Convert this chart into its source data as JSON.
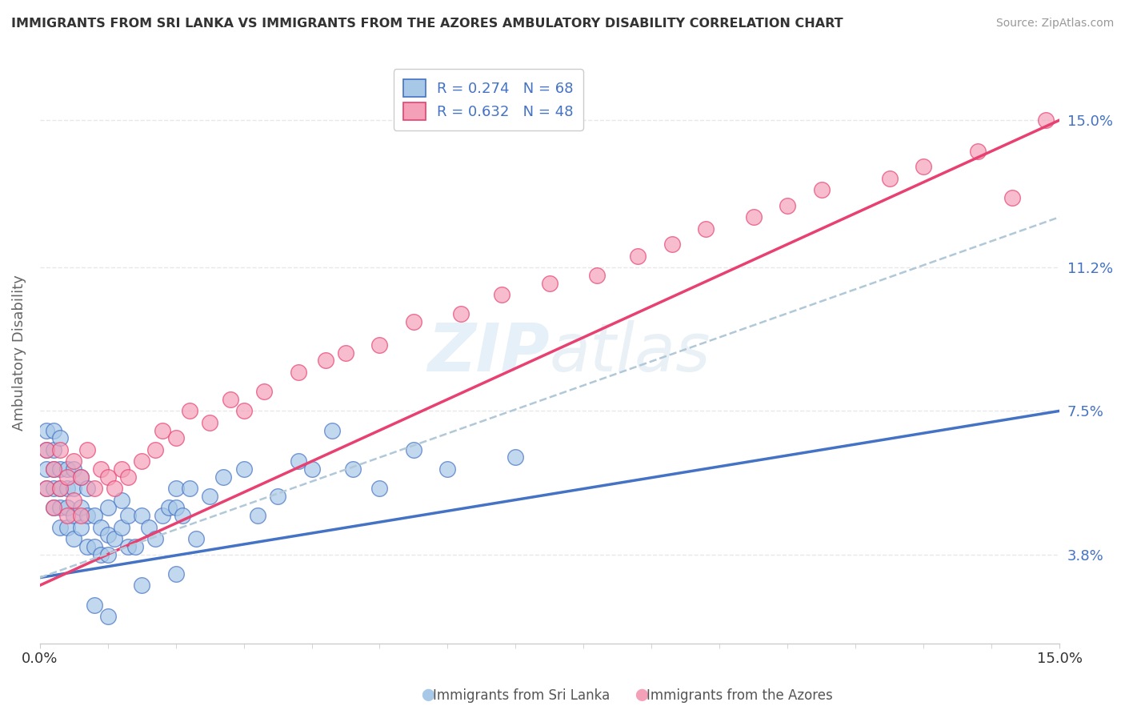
{
  "title": "IMMIGRANTS FROM SRI LANKA VS IMMIGRANTS FROM THE AZORES AMBULATORY DISABILITY CORRELATION CHART",
  "source": "Source: ZipAtlas.com",
  "ylabel": "Ambulatory Disability",
  "legend_label1": "Immigrants from Sri Lanka",
  "legend_label2": "Immigrants from the Azores",
  "legend_R1": "R = 0.274",
  "legend_N1": "N = 68",
  "legend_R2": "R = 0.632",
  "legend_N2": "N = 48",
  "xlim": [
    0.0,
    0.15
  ],
  "ylim": [
    0.015,
    0.165
  ],
  "ytick_positions": [
    0.038,
    0.075,
    0.112,
    0.15
  ],
  "ytick_labels": [
    "3.8%",
    "7.5%",
    "11.2%",
    "15.0%"
  ],
  "color_sri_lanka": "#a8c8e8",
  "color_azores": "#f4a0b8",
  "line_color_sri_lanka": "#4472c4",
  "line_color_azores": "#e84070",
  "line_color_dashed": "#b0c8d8",
  "background_color": "#ffffff",
  "grid_color": "#e8e8e8",
  "sl_line_start_y": 0.032,
  "sl_line_end_y": 0.075,
  "az_line_start_y": 0.03,
  "az_line_end_y": 0.15,
  "dash_line_start_y": 0.032,
  "dash_line_end_y": 0.125,
  "sri_lanka_x": [
    0.001,
    0.001,
    0.001,
    0.001,
    0.002,
    0.002,
    0.002,
    0.002,
    0.002,
    0.003,
    0.003,
    0.003,
    0.003,
    0.003,
    0.004,
    0.004,
    0.004,
    0.004,
    0.005,
    0.005,
    0.005,
    0.005,
    0.006,
    0.006,
    0.006,
    0.007,
    0.007,
    0.007,
    0.008,
    0.008,
    0.009,
    0.009,
    0.01,
    0.01,
    0.01,
    0.011,
    0.012,
    0.012,
    0.013,
    0.013,
    0.014,
    0.015,
    0.016,
    0.017,
    0.018,
    0.019,
    0.02,
    0.02,
    0.021,
    0.022,
    0.023,
    0.025,
    0.027,
    0.03,
    0.032,
    0.035,
    0.038,
    0.04,
    0.043,
    0.046,
    0.05,
    0.055,
    0.06,
    0.07,
    0.015,
    0.008,
    0.01,
    0.02
  ],
  "sri_lanka_y": [
    0.055,
    0.06,
    0.065,
    0.07,
    0.05,
    0.055,
    0.06,
    0.065,
    0.07,
    0.045,
    0.05,
    0.055,
    0.06,
    0.068,
    0.045,
    0.05,
    0.055,
    0.06,
    0.042,
    0.048,
    0.055,
    0.06,
    0.045,
    0.05,
    0.058,
    0.04,
    0.048,
    0.055,
    0.04,
    0.048,
    0.038,
    0.045,
    0.038,
    0.043,
    0.05,
    0.042,
    0.045,
    0.052,
    0.04,
    0.048,
    0.04,
    0.048,
    0.045,
    0.042,
    0.048,
    0.05,
    0.05,
    0.055,
    0.048,
    0.055,
    0.042,
    0.053,
    0.058,
    0.06,
    0.048,
    0.053,
    0.062,
    0.06,
    0.07,
    0.06,
    0.055,
    0.065,
    0.06,
    0.063,
    0.03,
    0.025,
    0.022,
    0.033
  ],
  "azores_x": [
    0.001,
    0.001,
    0.002,
    0.002,
    0.003,
    0.003,
    0.004,
    0.004,
    0.005,
    0.005,
    0.006,
    0.006,
    0.007,
    0.008,
    0.009,
    0.01,
    0.011,
    0.012,
    0.013,
    0.015,
    0.017,
    0.018,
    0.02,
    0.022,
    0.025,
    0.028,
    0.03,
    0.033,
    0.038,
    0.042,
    0.045,
    0.05,
    0.055,
    0.062,
    0.068,
    0.075,
    0.082,
    0.088,
    0.093,
    0.098,
    0.105,
    0.11,
    0.115,
    0.125,
    0.13,
    0.138,
    0.143,
    0.148
  ],
  "azores_y": [
    0.055,
    0.065,
    0.05,
    0.06,
    0.055,
    0.065,
    0.048,
    0.058,
    0.052,
    0.062,
    0.048,
    0.058,
    0.065,
    0.055,
    0.06,
    0.058,
    0.055,
    0.06,
    0.058,
    0.062,
    0.065,
    0.07,
    0.068,
    0.075,
    0.072,
    0.078,
    0.075,
    0.08,
    0.085,
    0.088,
    0.09,
    0.092,
    0.098,
    0.1,
    0.105,
    0.108,
    0.11,
    0.115,
    0.118,
    0.122,
    0.125,
    0.128,
    0.132,
    0.135,
    0.138,
    0.142,
    0.13,
    0.15
  ]
}
